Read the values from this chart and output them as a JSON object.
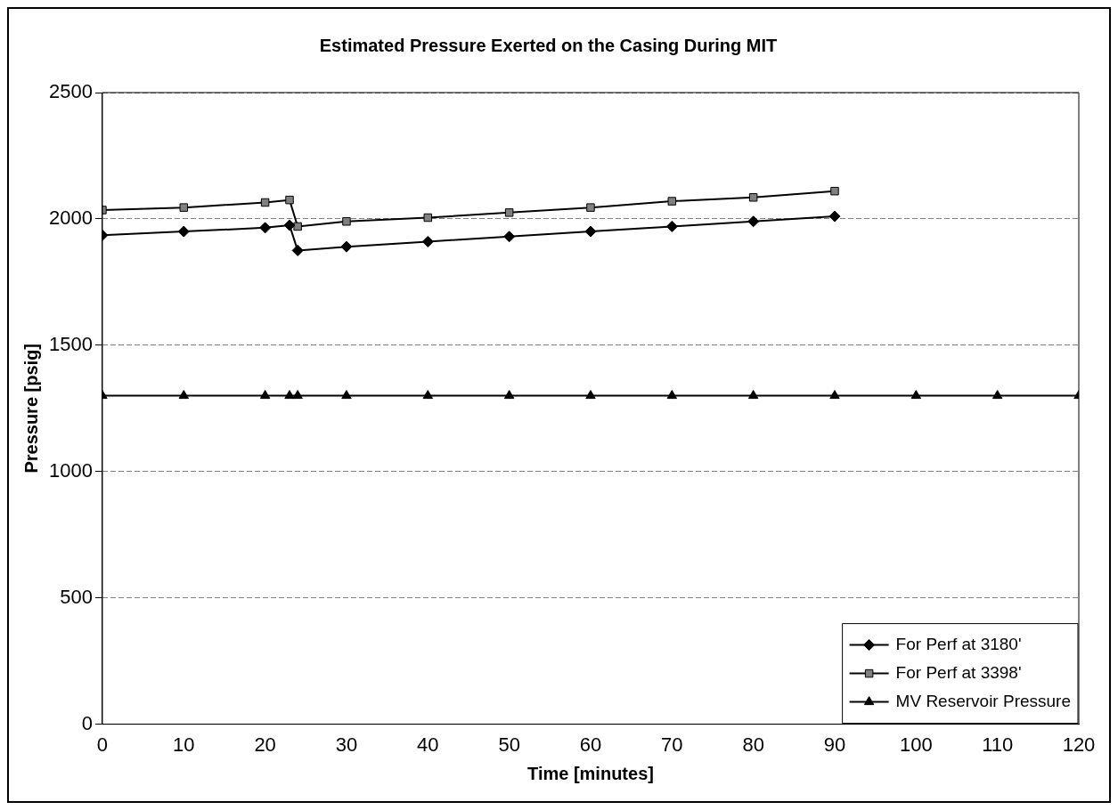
{
  "chart_data": {
    "type": "line",
    "title": "Estimated Pressure Exerted on the Casing During MIT",
    "xlabel": "Time [minutes]",
    "ylabel": "Pressure [psig]",
    "xlim": [
      0,
      120
    ],
    "xticks": [
      0,
      10,
      20,
      30,
      40,
      50,
      60,
      70,
      80,
      90,
      100,
      110,
      120
    ],
    "ylim": [
      0,
      2500
    ],
    "yticks": [
      0,
      500,
      1000,
      1500,
      2000,
      2500
    ],
    "grid": "y",
    "legend": "bottom right",
    "series": [
      {
        "name": "For Perf at 3180'",
        "color": "#000000",
        "marker": "diamond",
        "x": [
          0,
          10,
          20,
          23,
          24,
          30,
          40,
          50,
          60,
          70,
          80,
          90
        ],
        "values": [
          1935,
          1950,
          1965,
          1975,
          1875,
          1890,
          1910,
          1930,
          1950,
          1970,
          1990,
          2010
        ]
      },
      {
        "name": "For Perf at 3398'",
        "color": "#808080",
        "marker": "square",
        "x": [
          0,
          10,
          20,
          23,
          24,
          30,
          40,
          50,
          60,
          70,
          80,
          90
        ],
        "values": [
          2035,
          2045,
          2065,
          2075,
          1970,
          1990,
          2005,
          2025,
          2045,
          2070,
          2085,
          2110
        ]
      },
      {
        "name": "MV Reservoir Pressure",
        "color": "#000000",
        "marker": "triangle",
        "x": [
          0,
          10,
          20,
          23,
          24,
          30,
          40,
          50,
          60,
          70,
          80,
          90,
          100,
          110,
          120
        ],
        "values": [
          1300,
          1300,
          1300,
          1300,
          1300,
          1300,
          1300,
          1300,
          1300,
          1300,
          1300,
          1300,
          1300,
          1300,
          1300
        ]
      }
    ]
  }
}
